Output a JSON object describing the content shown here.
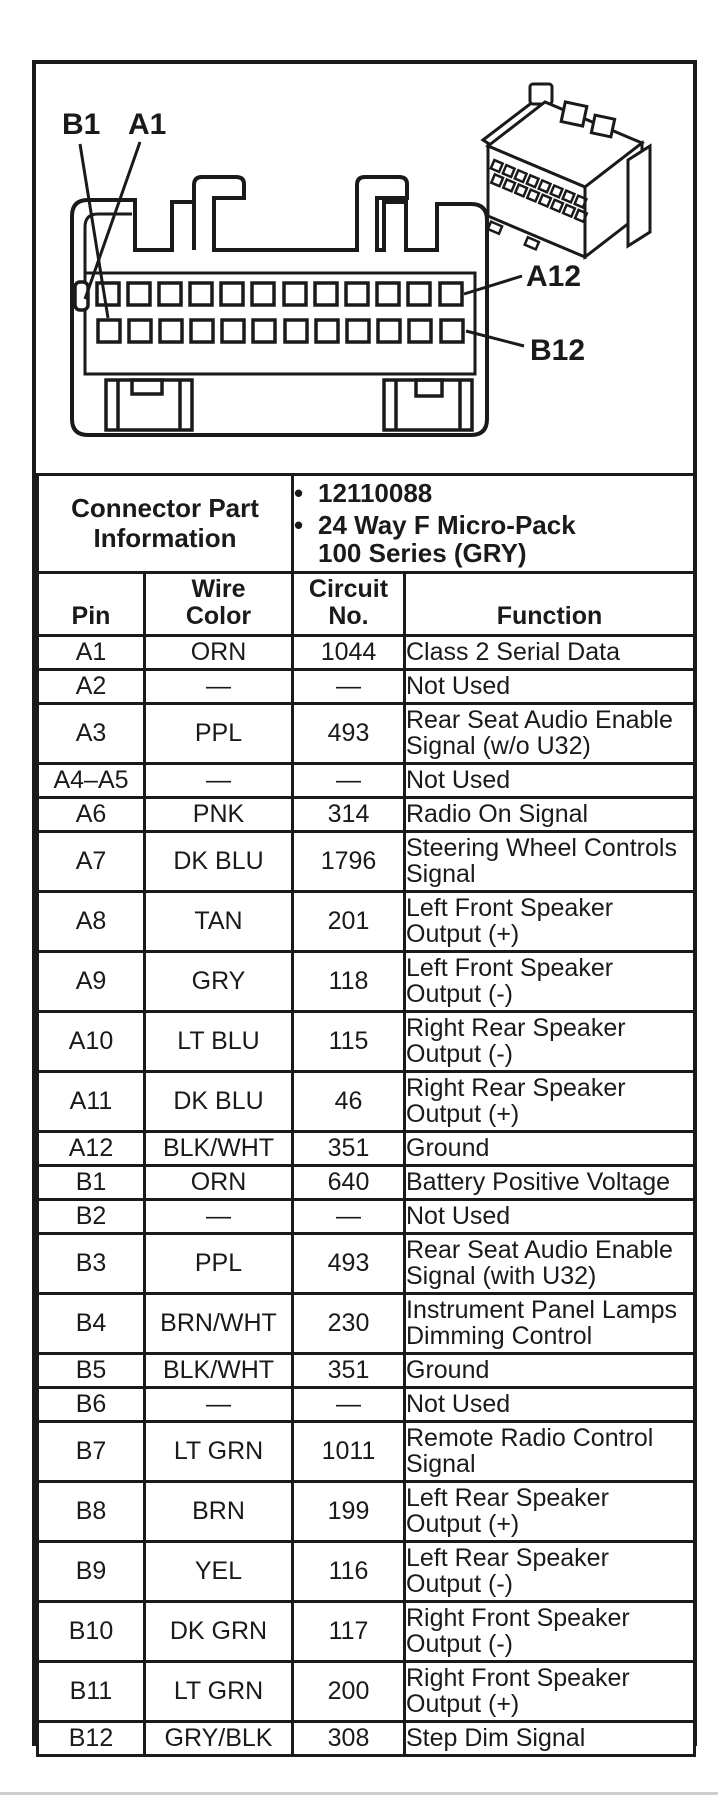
{
  "page": {
    "paper_color": "#ffffff",
    "ink_color": "#1a1a1a",
    "bottom_edge_color": "#cfcfcf"
  },
  "diagram": {
    "description": "Face view of 24-way connector with two rows of 12 terminals plus isometric view of connector housing",
    "labels": {
      "b1": "B1",
      "a1": "A1",
      "a12": "A12",
      "b12": "B12"
    },
    "top_row_pin_count": 12,
    "bottom_row_pin_count": 12
  },
  "connector_info": {
    "header": "Connector Part\nInformation",
    "bullets": [
      "12110088",
      "24 Way F Micro-Pack\n100 Series (GRY)"
    ]
  },
  "pinout": {
    "columns": [
      "Pin",
      "Wire\nColor",
      "Circuit\nNo.",
      "Function"
    ],
    "rows": [
      {
        "pin": "A1",
        "wire": "ORN",
        "circuit": "1044",
        "func": "Class 2 Serial Data"
      },
      {
        "pin": "A2",
        "wire": "—",
        "circuit": "—",
        "func": "Not Used"
      },
      {
        "pin": "A3",
        "wire": "PPL",
        "circuit": "493",
        "func": "Rear Seat Audio Enable\nSignal (w/o U32)"
      },
      {
        "pin": "A4–A5",
        "wire": "—",
        "circuit": "—",
        "func": "Not Used"
      },
      {
        "pin": "A6",
        "wire": "PNK",
        "circuit": "314",
        "func": "Radio On Signal"
      },
      {
        "pin": "A7",
        "wire": "DK BLU",
        "circuit": "1796",
        "func": "Steering Wheel Controls\nSignal"
      },
      {
        "pin": "A8",
        "wire": "TAN",
        "circuit": "201",
        "func": "Left Front Speaker\nOutput (+)"
      },
      {
        "pin": "A9",
        "wire": "GRY",
        "circuit": "118",
        "func": "Left Front Speaker\nOutput (-)"
      },
      {
        "pin": "A10",
        "wire": "LT BLU",
        "circuit": "115",
        "func": "Right Rear Speaker\nOutput (-)"
      },
      {
        "pin": "A11",
        "wire": "DK BLU",
        "circuit": "46",
        "func": "Right Rear Speaker\nOutput (+)"
      },
      {
        "pin": "A12",
        "wire": "BLK/WHT",
        "circuit": "351",
        "func": "Ground"
      },
      {
        "pin": "B1",
        "wire": "ORN",
        "circuit": "640",
        "func": "Battery Positive Voltage"
      },
      {
        "pin": "B2",
        "wire": "—",
        "circuit": "—",
        "func": "Not Used"
      },
      {
        "pin": "B3",
        "wire": "PPL",
        "circuit": "493",
        "func": "Rear Seat Audio Enable\nSignal (with U32)"
      },
      {
        "pin": "B4",
        "wire": "BRN/WHT",
        "circuit": "230",
        "func": "Instrument Panel Lamps\nDimming Control"
      },
      {
        "pin": "B5",
        "wire": "BLK/WHT",
        "circuit": "351",
        "func": "Ground"
      },
      {
        "pin": "B6",
        "wire": "—",
        "circuit": "—",
        "func": "Not Used"
      },
      {
        "pin": "B7",
        "wire": "LT GRN",
        "circuit": "1011",
        "func": "Remote Radio Control\nSignal"
      },
      {
        "pin": "B8",
        "wire": "BRN",
        "circuit": "199",
        "func": "Left Rear Speaker\nOutput (+)"
      },
      {
        "pin": "B9",
        "wire": "YEL",
        "circuit": "116",
        "func": "Left Rear Speaker\nOutput (-)"
      },
      {
        "pin": "B10",
        "wire": "DK GRN",
        "circuit": "117",
        "func": "Right Front Speaker\nOutput (-)"
      },
      {
        "pin": "B11",
        "wire": "LT GRN",
        "circuit": "200",
        "func": "Right Front Speaker\nOutput (+)"
      },
      {
        "pin": "B12",
        "wire": "GRY/BLK",
        "circuit": "308",
        "func": "Step Dim Signal"
      }
    ]
  }
}
